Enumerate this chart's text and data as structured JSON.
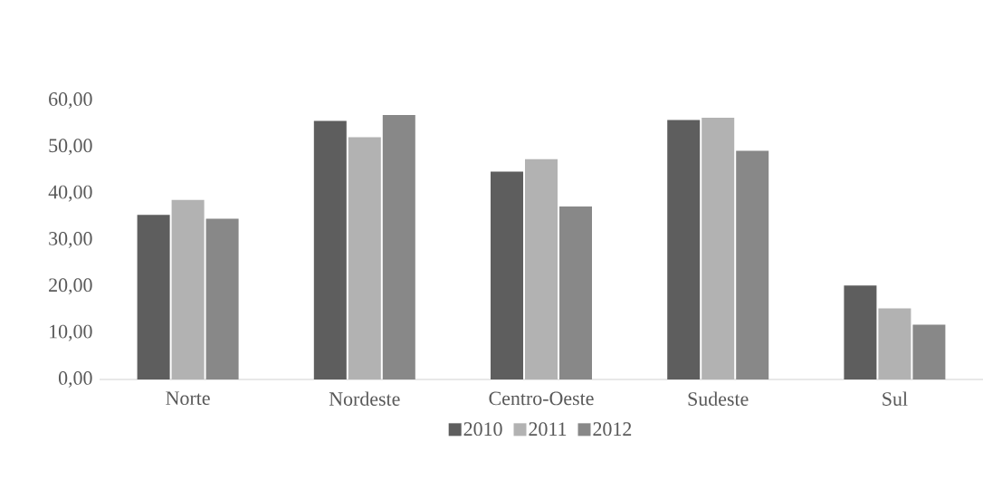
{
  "chart_data": {
    "type": "bar",
    "categories": [
      "Norte",
      "Nordeste",
      "Centro-Oeste",
      "Sudeste",
      "Sul"
    ],
    "series": [
      {
        "name": "2010",
        "color": "#5e5e5e",
        "values": [
          35.4,
          55.6,
          44.7,
          55.8,
          20.2
        ]
      },
      {
        "name": "2011",
        "color": "#b2b2b2",
        "values": [
          38.6,
          52.1,
          47.4,
          56.3,
          15.3
        ]
      },
      {
        "name": "2012",
        "color": "#888888",
        "values": [
          34.6,
          56.9,
          37.2,
          49.2,
          11.8
        ]
      }
    ],
    "ylim": [
      0,
      60
    ],
    "yticks": [
      {
        "value": 0,
        "label": "0,00"
      },
      {
        "value": 10,
        "label": "10,00"
      },
      {
        "value": 20,
        "label": "20,00"
      },
      {
        "value": 30,
        "label": "30,00"
      },
      {
        "value": 40,
        "label": "40,00"
      },
      {
        "value": 50,
        "label": "50,00"
      },
      {
        "value": 60,
        "label": "60,00"
      }
    ],
    "grid": false,
    "legend": "bottom"
  }
}
